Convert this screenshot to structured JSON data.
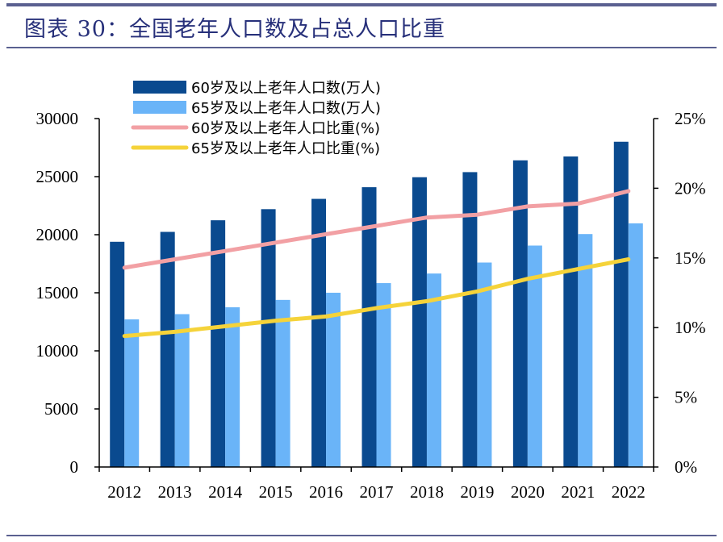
{
  "header": {
    "title": "图表 30：全国老年人口数及占总人口比重"
  },
  "chart_data": {
    "type": "bar",
    "categories": [
      "2012",
      "2013",
      "2014",
      "2015",
      "2016",
      "2017",
      "2018",
      "2019",
      "2020",
      "2021",
      "2022"
    ],
    "series": [
      {
        "name": "60岁及以上老年人口数(万人)",
        "kind": "bar",
        "axis": "left",
        "color": "#0a4a8f",
        "values": [
          19390,
          20243,
          21242,
          22200,
          23086,
          24090,
          24949,
          25388,
          26402,
          26736,
          28004
        ]
      },
      {
        "name": "65岁及以上老年人口数(万人)",
        "kind": "bar",
        "axis": "left",
        "color": "#6ab4f8",
        "values": [
          12714,
          13161,
          13755,
          14386,
          15003,
          15831,
          16658,
          17603,
          19064,
          20056,
          20978
        ]
      },
      {
        "name": "60岁及以上老年人口比重(%)",
        "kind": "line",
        "axis": "right",
        "color": "#f2a0a4",
        "values": [
          14.3,
          14.9,
          15.5,
          16.1,
          16.7,
          17.3,
          17.9,
          18.1,
          18.7,
          18.9,
          19.8
        ]
      },
      {
        "name": "65岁及以上老年人口比重(%)",
        "kind": "line",
        "axis": "right",
        "color": "#f5d33a",
        "values": [
          9.4,
          9.7,
          10.1,
          10.5,
          10.8,
          11.4,
          11.9,
          12.6,
          13.5,
          14.2,
          14.9
        ]
      }
    ],
    "y_left": {
      "min": 0,
      "max": 30000,
      "ticks": [
        "0",
        "5000",
        "10000",
        "15000",
        "20000",
        "25000",
        "30000"
      ]
    },
    "y_right": {
      "min": 0,
      "max": 25,
      "ticks": [
        "0%",
        "5%",
        "10%",
        "15%",
        "20%",
        "25%"
      ]
    },
    "legend_position": "top-left",
    "grid": false
  }
}
